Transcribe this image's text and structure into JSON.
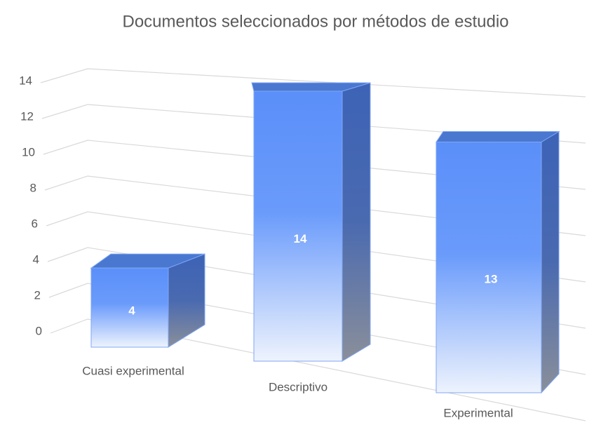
{
  "chart_data": {
    "type": "bar3d",
    "title": "Documentos seleccionados por métodos de estudio",
    "categories": [
      "Cuasi experimental",
      "Descriptivo",
      "Experimental"
    ],
    "values": [
      4,
      14,
      13
    ],
    "color": "#5b8ff9",
    "ylim": [
      0,
      14
    ],
    "yticks": [
      0,
      2,
      4,
      6,
      8,
      10,
      12,
      14
    ],
    "grid": true
  }
}
